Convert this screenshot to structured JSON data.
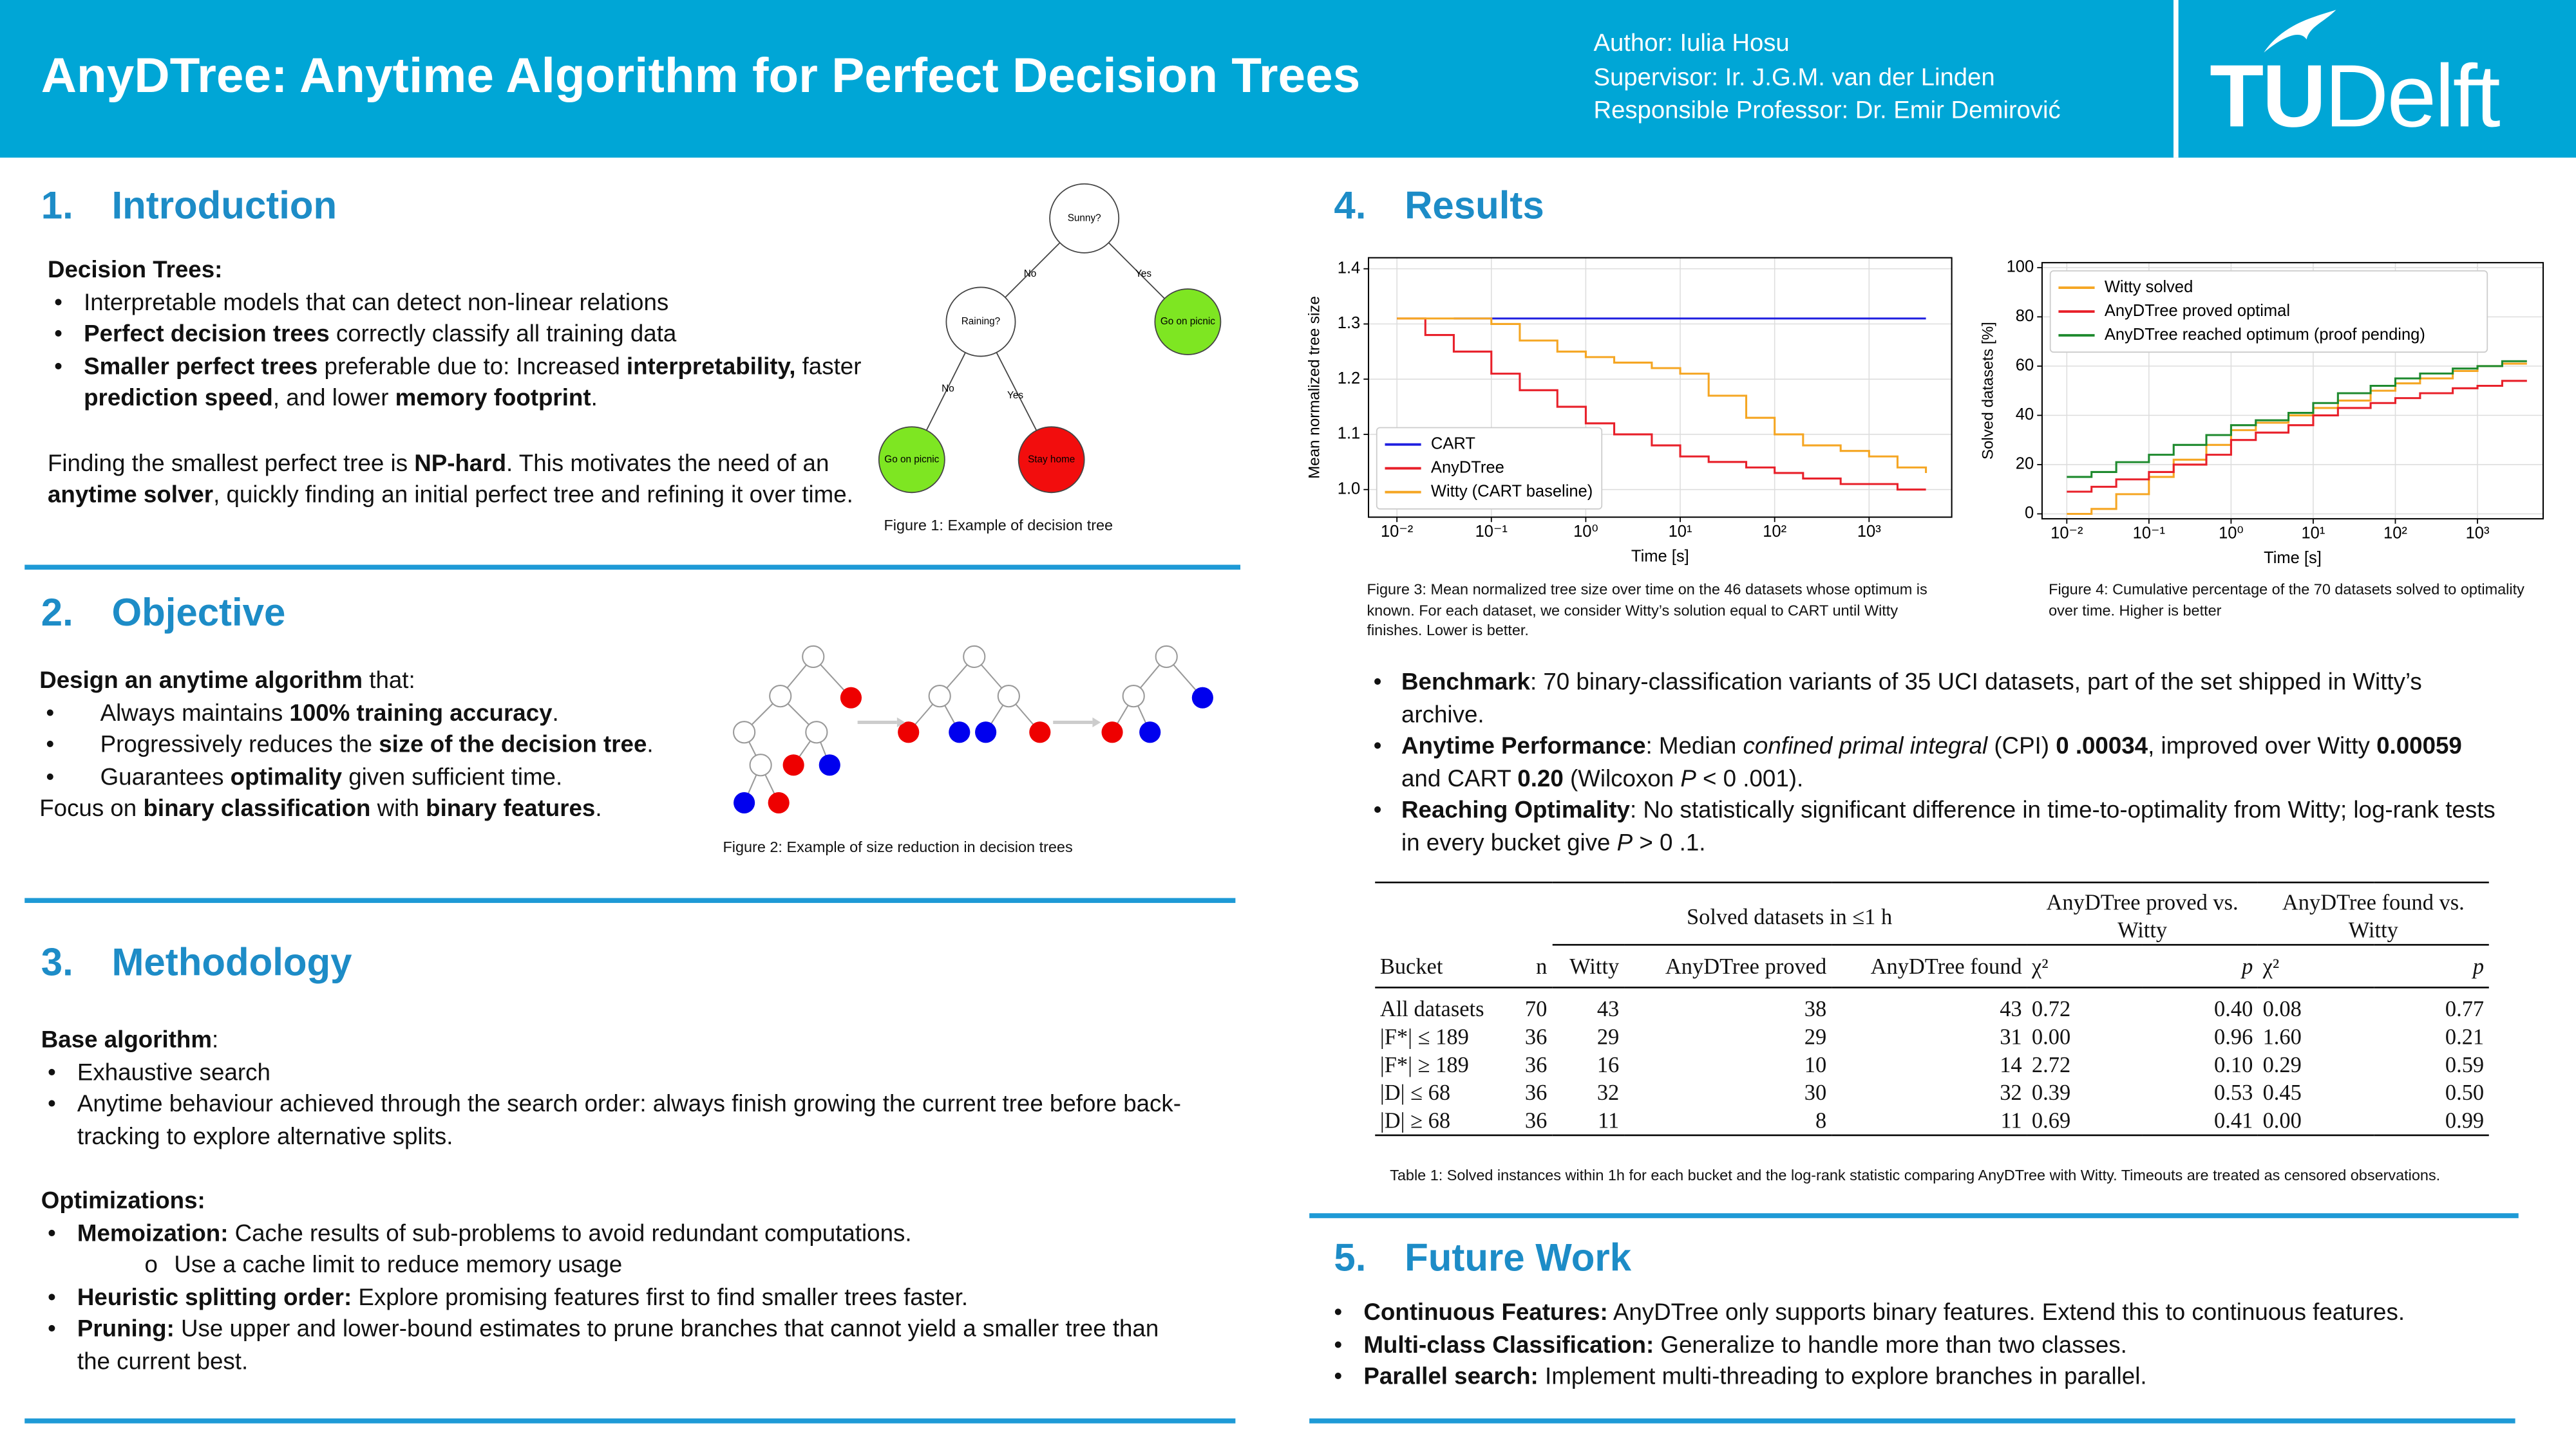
{
  "header": {
    "title": "AnyDTree: Anytime Algorithm for Perfect Decision Trees",
    "author": "Author: Iulia Hosu",
    "supervisor": "Supervisor: Ir. J.G.M. van der Linden",
    "professor": "Responsible Professor: Dr. Emir Demirović",
    "logo": [
      "TU",
      "Delft"
    ]
  },
  "sections": [
    {
      "number": "1.",
      "title": "Introduction",
      "blocks": [
        {
          "runs": [
            {
              "text": "Decision Trees:",
              "style": "bold"
            }
          ]
        },
        {
          "bullets": [
            [
              "Interpretable models that can detect non-linear relations"
            ],
            [
              {
                "text": "Perfect decision trees",
                "style": "bold"
              },
              " correctly classify all training data"
            ],
            [
              {
                "text": "Smaller perfect trees",
                "style": "bold"
              },
              " preferable due to: Increased ",
              {
                "text": "interpretability,",
                "style": "bold"
              },
              " faster ",
              {
                "text": "prediction speed",
                "style": "bold"
              },
              ", and lower ",
              {
                "text": "memory footprint",
                "style": "bold"
              },
              "."
            ]
          ]
        },
        {
          "runs": [
            "Finding the smallest perfect tree is ",
            {
              "text": "NP-hard",
              "style": "bold"
            },
            ". This motivates the need of an ",
            {
              "text": "anytime solver",
              "style": "bold"
            },
            ", quickly finding an initial perfect tree and refining it over time."
          ]
        }
      ],
      "figure": {
        "nodes": [
          {
            "label": "Sunny?",
            "color": "#ffffff"
          },
          {
            "label": "Raining?",
            "color": "#ffffff"
          },
          {
            "label": "Go on picnic",
            "color": "#7ee622"
          },
          {
            "label": "Go on picnic",
            "color": "#7ee622"
          },
          {
            "label": "Stay home",
            "color": "#f20d0d"
          }
        ],
        "edge_labels": [
          "No",
          "Yes",
          "No",
          "Yes"
        ],
        "caption": "Figure 1: Example of decision tree"
      }
    },
    {
      "number": "2.",
      "title": "Objective",
      "blocks": [
        {
          "runs": [
            {
              "text": "Design an anytime algorithm",
              "style": "bold"
            },
            " that:"
          ]
        },
        {
          "bullets": [
            [
              "Always maintains ",
              {
                "text": "100% training accuracy",
                "style": "bold"
              },
              "."
            ],
            [
              "Progressively reduces the ",
              {
                "text": "size of the decision tree",
                "style": "bold"
              },
              "."
            ],
            [
              "Guarantees ",
              {
                "text": "optimality",
                "style": "bold"
              },
              " given sufficient time."
            ]
          ]
        },
        {
          "runs": [
            "Focus on ",
            {
              "text": "binary classification",
              "style": "bold"
            },
            " with ",
            {
              "text": "binary features",
              "style": "bold"
            },
            "."
          ]
        }
      ],
      "figure": {
        "caption": "Figure 2: Example of size reduction in decision trees"
      }
    },
    {
      "number": "3.",
      "title": "Methodology",
      "blocks": [
        {
          "runs": [
            {
              "text": "Base algorithm",
              "style": "bold"
            },
            ":"
          ]
        },
        {
          "bullets": [
            [
              "Exhaustive search"
            ],
            [
              "Anytime behaviour achieved through the search order: always finish growing the current tree before back-tracking to explore alternative splits."
            ]
          ]
        },
        {
          "runs": [
            {
              "text": "Optimizations:",
              "style": "bold"
            }
          ]
        },
        {
          "bullets": [
            [
              {
                "text": "Memoization:",
                "style": "bold"
              },
              " Cache results of sub-problems to avoid redundant computations."
            ],
            {
              "sub": [
                "Use a cache limit to reduce memory usage"
              ]
            },
            [
              {
                "text": "Heuristic splitting order:",
                "style": "bold"
              },
              " Explore promising features first to find smaller trees faster."
            ],
            [
              {
                "text": "Pruning:",
                "style": "bold"
              },
              " Use upper and lower-bound estimates to prune branches that cannot yield a smaller tree than the current best."
            ]
          ]
        }
      ]
    },
    {
      "number": "4.",
      "title": "Results",
      "blocks": [
        {
          "bullets": [
            [
              {
                "text": "Benchmark",
                "style": "bold"
              },
              ": 70 binary-classification variants of 35 UCI datasets, part of the set shipped in Witty’s archive."
            ],
            [
              {
                "text": "Anytime Performance",
                "style": "bold"
              },
              ": Median ",
              {
                "text": "confined primal integral",
                "style": "italic"
              },
              " (CPI) ",
              {
                "text": "0 .00034",
                "style": "bold"
              },
              ", improved over Witty ",
              {
                "text": "0.00059",
                "style": "bold"
              },
              " and CART ",
              {
                "text": "0.20",
                "style": "bold"
              },
              " (Wilcoxon ",
              {
                "text": "P",
                "style": "italic"
              },
              " < 0 .001)."
            ],
            [
              {
                "text": "Reaching Optimality",
                "style": "bold"
              },
              ": No statistically significant difference in time-to-optimality from Witty; log-rank tests in every bucket give ",
              {
                "text": "P",
                "style": "italic"
              },
              " > 0 .1."
            ]
          ]
        }
      ],
      "table": {
        "groups": [
          "Solved datasets in ≤1 h",
          "AnyDTree proved vs. Witty",
          "AnyDTree found vs. Witty"
        ],
        "columns": [
          "Bucket",
          "n",
          "Witty",
          "AnyDTree proved",
          "AnyDTree found",
          "χ²",
          "p",
          "χ²",
          "p"
        ],
        "rows": [
          [
            "All datasets",
            "70",
            "43",
            "38",
            "43",
            "0.72",
            "0.40",
            "0.08",
            "0.77"
          ],
          [
            "|F*| ≤ 189",
            "36",
            "29",
            "29",
            "31",
            "0.00",
            "0.96",
            "1.60",
            "0.21"
          ],
          [
            "|F*| ≥ 189",
            "36",
            "16",
            "10",
            "14",
            "2.72",
            "0.10",
            "0.29",
            "0.59"
          ],
          [
            "|D| ≤ 68",
            "36",
            "32",
            "30",
            "32",
            "0.39",
            "0.53",
            "0.45",
            "0.50"
          ],
          [
            "|D| ≥ 68",
            "36",
            "11",
            "8",
            "11",
            "0.69",
            "0.41",
            "0.00",
            "0.99"
          ]
        ],
        "caption": "Table 1: Solved instances within 1h for each bucket and the log-rank statistic comparing AnyDTree with Witty. Timeouts are treated as censored observations."
      }
    },
    {
      "number": "5.",
      "title": "Future Work",
      "blocks": [
        {
          "bullets": [
            [
              {
                "text": "Continuous Features:",
                "style": "bold"
              },
              " AnyDTree only supports binary features. Extend this to continuous features."
            ],
            [
              {
                "text": "Multi-class Classification:",
                "style": "bold"
              },
              " Generalize to handle more than two classes."
            ],
            [
              {
                "text": "Parallel search:",
                "style": "bold"
              },
              " Implement multi-threading to explore branches in parallel."
            ]
          ]
        }
      ]
    }
  ],
  "chart_data": [
    {
      "type": "line",
      "step": true,
      "xscale": "log",
      "grid": true,
      "xlabel": "Time [s]",
      "ylabel": "Mean normalized tree size",
      "caption": "Figure 3: Mean normalized tree size over time on the 46 datasets whose optimum is known. For each dataset, we consider Witty’s solution equal to CART until Witty finishes. Lower is better.",
      "x": [
        0.01,
        0.02,
        0.04,
        0.1,
        0.2,
        0.5,
        1,
        2,
        5,
        10,
        20,
        50,
        100,
        200,
        500,
        1000,
        2000,
        4000
      ],
      "xlim": [
        0.005,
        7500
      ],
      "xticks": [
        {
          "value": 0.01,
          "label": "10⁻²"
        },
        {
          "value": 0.1,
          "label": "10⁻¹"
        },
        {
          "value": 1,
          "label": "10⁰"
        },
        {
          "value": 10,
          "label": "10¹"
        },
        {
          "value": 100,
          "label": "10²"
        },
        {
          "value": 1000,
          "label": "10³"
        }
      ],
      "ylim": [
        0.95,
        1.42
      ],
      "yticks": [
        {
          "value": 1,
          "label": "1.0"
        },
        1.1,
        1.2,
        1.3,
        1.4
      ],
      "legend": "lower left",
      "series": [
        {
          "name": "CART",
          "color": "#1f1fe0",
          "values": [
            null,
            null,
            1.31,
            1.31,
            1.31,
            1.31,
            1.31,
            1.31,
            1.31,
            1.31,
            1.31,
            1.31,
            1.31,
            1.31,
            1.31,
            1.31,
            1.31,
            1.31
          ]
        },
        {
          "name": "AnyDTree",
          "color": "#e8202a",
          "values": [
            1.31,
            1.28,
            1.25,
            1.21,
            1.18,
            1.15,
            1.12,
            1.1,
            1.08,
            1.06,
            1.05,
            1.04,
            1.03,
            1.02,
            1.01,
            1.01,
            1.0,
            1.0
          ]
        },
        {
          "name": "Witty (CART baseline)",
          "color": "#f5a623",
          "values": [
            1.31,
            1.31,
            1.31,
            1.3,
            1.27,
            1.25,
            1.24,
            1.23,
            1.22,
            1.21,
            1.17,
            1.13,
            1.1,
            1.08,
            1.07,
            1.06,
            1.04,
            1.03
          ]
        }
      ]
    },
    {
      "type": "line",
      "step": true,
      "xscale": "log",
      "grid": true,
      "xlabel": "Time [s]",
      "ylabel": "Solved datasets [%]",
      "caption": "Figure 4: Cumulative percentage of the 70 datasets solved to optimality over time. Higher is better",
      "x": [
        0.01,
        0.02,
        0.04,
        0.1,
        0.2,
        0.5,
        1,
        2,
        5,
        10,
        20,
        50,
        100,
        200,
        500,
        1000,
        2000,
        4000
      ],
      "xlim": [
        0.005,
        6300
      ],
      "xticks": [
        {
          "value": 0.01,
          "label": "10⁻²"
        },
        {
          "value": 0.1,
          "label": "10⁻¹"
        },
        {
          "value": 1,
          "label": "10⁰"
        },
        {
          "value": 10,
          "label": "10¹"
        },
        {
          "value": 100,
          "label": "10²"
        },
        {
          "value": 1000,
          "label": "10³"
        }
      ],
      "ylim": [
        -2,
        102
      ],
      "yticks": [
        0,
        20,
        40,
        60,
        80,
        100
      ],
      "legend": "upper left",
      "series": [
        {
          "name": "Witty solved",
          "color": "#f5a623",
          "values": [
            0,
            2,
            8,
            15,
            22,
            28,
            34,
            37,
            40,
            43,
            46,
            50,
            53,
            55,
            58,
            60,
            61,
            61
          ]
        },
        {
          "name": "AnyDTree proved optimal",
          "color": "#e8202a",
          "values": [
            9,
            11,
            14,
            17,
            20,
            24,
            30,
            33,
            36,
            40,
            43,
            45,
            47,
            49,
            51,
            52,
            54,
            54
          ]
        },
        {
          "name": "AnyDTree reached optimum (proof pending)",
          "color": "#1e8a2e",
          "values": [
            15,
            17,
            21,
            24,
            28,
            32,
            36,
            38,
            41,
            45,
            49,
            52,
            55,
            57,
            59,
            60,
            62,
            62
          ]
        }
      ]
    }
  ]
}
